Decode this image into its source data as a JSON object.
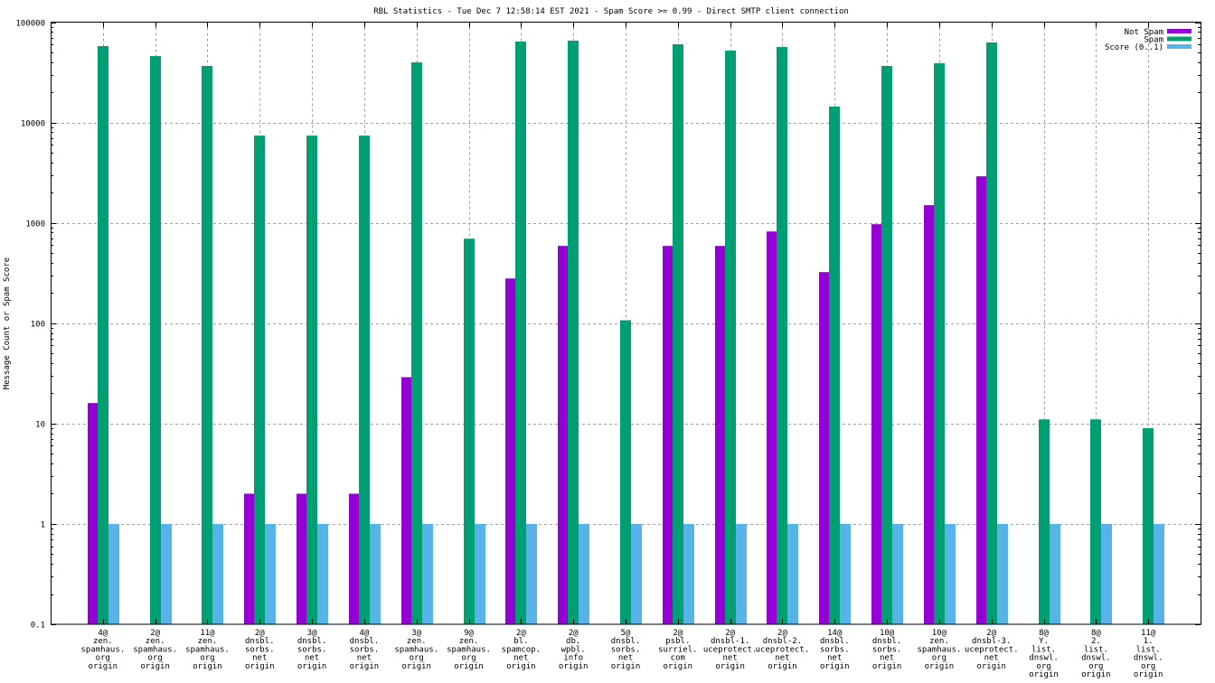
{
  "chart_data": {
    "type": "bar",
    "title": "RBL Statistics - Tue Dec  7 12:58:14 EST 2021 - Spam Score >= 0.99 - Direct SMTP client connection",
    "xlabel": "",
    "ylabel": "Message Count or Spam Score",
    "yscale": "log",
    "ylim": [
      0.1,
      100000
    ],
    "yticks": [
      "0.1",
      "1",
      "10",
      "100",
      "1000",
      "10000",
      "100000"
    ],
    "ytick_values": [
      0.1,
      1,
      10,
      100,
      1000,
      10000,
      100000
    ],
    "grid": true,
    "legend_position": "top-right",
    "categories": [
      [
        "4@",
        "zen.",
        "spamhaus.",
        "org",
        "origin"
      ],
      [
        "2@",
        "zen.",
        "spamhaus.",
        "org",
        "origin"
      ],
      [
        "11@",
        "zen.",
        "spamhaus.",
        "org",
        "origin"
      ],
      [
        "2@",
        "dnsbl.",
        "sorbs.",
        "net",
        "origin"
      ],
      [
        "3@",
        "dnsbl.",
        "sorbs.",
        "net",
        "origin"
      ],
      [
        "4@",
        "dnsbl.",
        "sorbs.",
        "net",
        "origin"
      ],
      [
        "3@",
        "zen.",
        "spamhaus.",
        "org",
        "origin"
      ],
      [
        "9@",
        "zen.",
        "spamhaus.",
        "org",
        "origin"
      ],
      [
        "2@",
        "bl.",
        "spamcop.",
        "net",
        "origin"
      ],
      [
        "2@",
        "db.",
        "wpbl.",
        "info",
        "origin"
      ],
      [
        "5@",
        "dnsbl.",
        "sorbs.",
        "net",
        "origin"
      ],
      [
        "2@",
        "psbl.",
        "surriel.",
        "com",
        "origin"
      ],
      [
        "2@",
        "dnsbl-1.",
        "uceprotect.",
        "net",
        "origin"
      ],
      [
        "2@",
        "dnsbl-2.",
        "uceprotect.",
        "net",
        "origin"
      ],
      [
        "14@",
        "dnsbl.",
        "sorbs.",
        "net",
        "origin"
      ],
      [
        "10@",
        "dnsbl.",
        "sorbs.",
        "net",
        "origin"
      ],
      [
        "10@",
        "zen.",
        "spamhaus.",
        "org",
        "origin"
      ],
      [
        "2@",
        "dnsbl-3.",
        "uceprotect.",
        "net",
        "origin"
      ],
      [
        "8@",
        "Y.",
        "list.",
        "dnswl.",
        "org",
        "origin"
      ],
      [
        "8@",
        "2.",
        "list.",
        "dnswl.",
        "org",
        "origin"
      ],
      [
        "11@",
        "1.",
        "list.",
        "dnswl.",
        "org",
        "origin"
      ]
    ],
    "series": [
      {
        "name": "Not Spam",
        "color": "#9400d3",
        "values": [
          16,
          null,
          null,
          2,
          2,
          2,
          29,
          null,
          279,
          589,
          null,
          589,
          589,
          820,
          323,
          969,
          1500,
          2910,
          null,
          null,
          null
        ]
      },
      {
        "name": "Spam",
        "color": "#009e73",
        "values": [
          57700,
          45900,
          36600,
          7400,
          7400,
          7400,
          39700,
          695,
          64000,
          65400,
          107,
          60100,
          52000,
          56500,
          14400,
          36600,
          38900,
          62700,
          11,
          11,
          9
        ]
      },
      {
        "name": "Score (0..1)",
        "color": "#56b4e9",
        "values": [
          1,
          1,
          1,
          1,
          1,
          1,
          1,
          1,
          1,
          1,
          1,
          1,
          1,
          1,
          1,
          1,
          1,
          1,
          1,
          1,
          1
        ]
      }
    ]
  }
}
